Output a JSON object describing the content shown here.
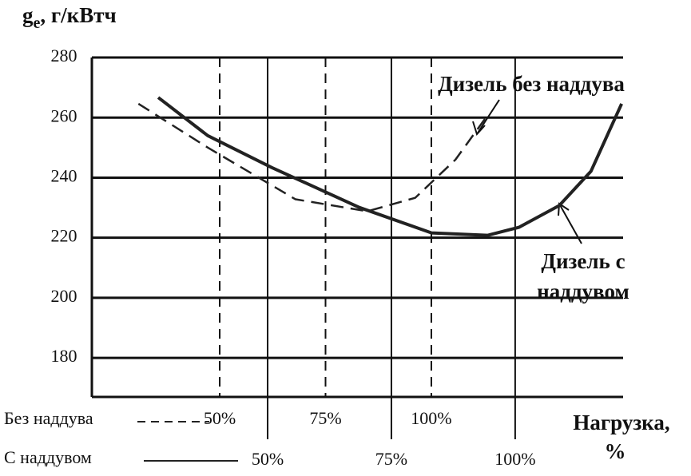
{
  "chart_data": {
    "type": "line",
    "ylabel": {
      "symbol": "g",
      "subscript": "e",
      "unit": ", г/кВтч"
    },
    "xlabel": [
      "Нагрузка,",
      "%"
    ],
    "ylim": [
      167,
      280
    ],
    "yticks": [
      180,
      200,
      220,
      240,
      260,
      280
    ],
    "xlim": [
      14.5,
      121.8
    ],
    "xticks": [
      {
        "value": 50,
        "label": "50%"
      },
      {
        "value": 75,
        "label": "75%"
      },
      {
        "value": 100,
        "label": "100%"
      }
    ],
    "x2lim": [
      19.8,
      145.3
    ],
    "x2ticks": [
      {
        "value": 50,
        "label": "50%"
      },
      {
        "value": 75,
        "label": "75%"
      },
      {
        "value": 100,
        "label": "100%"
      }
    ],
    "grid": true,
    "series": [
      {
        "name": "Без наддува",
        "color": "#222",
        "dashed": true,
        "axis": "x2",
        "x": [
          30.8,
          47.2,
          67.9,
          84.9,
          96.2,
          105.7,
          113.2
        ],
        "values": [
          264.6,
          250,
          232.8,
          228.8,
          233.3,
          246,
          260.6
        ]
      },
      {
        "name": "С наддувом",
        "color": "#222",
        "dashed": false,
        "x": [
          27.9,
          37.9,
          50.8,
          68.5,
          83.1,
          94.4,
          100.8,
          108.9,
          115.3,
          121.5
        ],
        "values": [
          266.7,
          254,
          243.4,
          230.1,
          221.6,
          220.8,
          223.5,
          230.7,
          242.1,
          264.6
        ]
      }
    ],
    "annotations": [
      [
        "Дизель без наддува"
      ],
      [
        "Дизель с",
        "наддувом"
      ]
    ]
  }
}
